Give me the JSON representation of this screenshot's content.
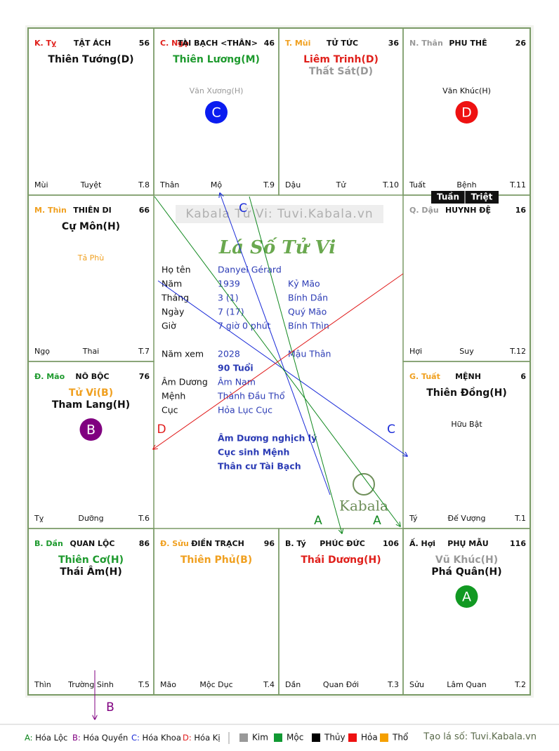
{
  "watermark": "Kabala Tử Vi: Tuvi.Kabala.vn",
  "heading": "Lá Số Tử Vi",
  "logo": "Kabala",
  "palaces": [
    {
      "stem_branch": "K. Tỵ",
      "stem_color": "#e0201b",
      "name": "TẬT ÁCH",
      "number": 56,
      "stars": [
        {
          "text": "Thiên Tướng(D)",
          "color": "#111111"
        }
      ],
      "minor": [],
      "bottom": [
        "Mùi",
        "Tuyệt",
        "T.8"
      ]
    },
    {
      "stem_branch": "C. Ngọ",
      "stem_color": "#e0201b",
      "name": "TÀI BẠCH <THÂN>",
      "number": 46,
      "stars": [
        {
          "text": "Thiên Lương(M)",
          "color": "#1e9a2e"
        }
      ],
      "minor": [
        {
          "text": "Văn Xương(H)",
          "color": "#999999"
        }
      ],
      "circle": {
        "letter": "C",
        "color": "#0a1cf0"
      },
      "bottom": [
        "Thân",
        "Mộ",
        "T.9"
      ]
    },
    {
      "stem_branch": "T. Mùi",
      "stem_color": "#f0a020",
      "name": "TỬ TỨC",
      "number": 36,
      "stars": [
        {
          "text": "Liêm Trinh(D)",
          "color": "#e0201b"
        },
        {
          "text": "Thất Sát(D)",
          "color": "#999999"
        }
      ],
      "minor": [],
      "bottom": [
        "Dậu",
        "Tử",
        "T.10"
      ]
    },
    {
      "stem_branch": "N. Thân",
      "stem_color": "#999999",
      "name": "PHU THÊ",
      "number": 26,
      "stars": [],
      "minor": [
        {
          "text": "Văn Khúc(H)",
          "color": "#111111"
        }
      ],
      "circle": {
        "letter": "D",
        "color": "#ee1111"
      },
      "bottom": [
        "Tuất",
        "Bệnh",
        "T.11"
      ]
    },
    {
      "stem_branch": "M. Thìn",
      "stem_color": "#f0a020",
      "name": "THIÊN DI",
      "number": 66,
      "stars": [
        {
          "text": "Cự Môn(H)",
          "color": "#111111"
        }
      ],
      "minor": [
        {
          "text": "Tả Phù",
          "color": "#f0a020"
        }
      ],
      "bottom": [
        "Ngọ",
        "Thai",
        "T.7"
      ]
    },
    {
      "stem_branch": "Q. Dậu",
      "stem_color": "#999999",
      "name": "HUYNH ĐỆ",
      "number": 16,
      "stars": [],
      "minor": [],
      "bottom": [
        "Hợi",
        "Suy",
        "T.12"
      ]
    },
    {
      "stem_branch": "Đ. Mão",
      "stem_color": "#1e9a2e",
      "name": "NÔ BỘC",
      "number": 76,
      "stars": [
        {
          "text": "Tử Vi(B)",
          "color": "#f0a020"
        },
        {
          "text": "Tham Lang(H)",
          "color": "#111111"
        }
      ],
      "minor": [],
      "circle": {
        "letter": "B",
        "color": "#800080"
      },
      "bottom": [
        "Tỵ",
        "Dưỡng",
        "T.6"
      ]
    },
    {
      "stem_branch": "G. Tuất",
      "stem_color": "#f0a020",
      "name": "MỆNH",
      "number": 6,
      "stars": [
        {
          "text": "Thiên Đồng(H)",
          "color": "#111111"
        }
      ],
      "minor": [
        {
          "text": "Hữu Bật",
          "color": "#111111"
        }
      ],
      "bottom": [
        "Tý",
        "Đế Vượng",
        "T.1"
      ]
    },
    {
      "stem_branch": "B. Dần",
      "stem_color": "#1e9a2e",
      "name": "QUAN LỘC",
      "number": 86,
      "stars": [
        {
          "text": "Thiên Cơ(H)",
          "color": "#1e9a2e"
        },
        {
          "text": "Thái Âm(H)",
          "color": "#111111"
        }
      ],
      "minor": [],
      "bottom": [
        "Thìn",
        "Trường Sinh",
        "T.5"
      ]
    },
    {
      "stem_branch": "Đ. Sửu",
      "stem_color": "#f0a020",
      "name": "ĐIỀN TRẠCH",
      "number": 96,
      "stars": [
        {
          "text": "Thiên Phủ(B)",
          "color": "#f0a020"
        }
      ],
      "minor": [],
      "bottom": [
        "Mão",
        "Mộc Dục",
        "T.4"
      ]
    },
    {
      "stem_branch": "B. Tý",
      "stem_color": "#111111",
      "name": "PHÚC ĐỨC",
      "number": 106,
      "stars": [
        {
          "text": "Thái Dương(H)",
          "color": "#e0201b"
        }
      ],
      "minor": [],
      "bottom": [
        "Dần",
        "Quan Đới",
        "T.3"
      ]
    },
    {
      "stem_branch": "Ấ. Hợi",
      "stem_color": "#111111",
      "name": "PHỤ MẪU",
      "number": 116,
      "stars": [
        {
          "text": "Vũ Khúc(H)",
          "color": "#999999"
        },
        {
          "text": "Phá Quân(H)",
          "color": "#111111"
        }
      ],
      "minor": [],
      "circle": {
        "letter": "A",
        "color": "#119922"
      },
      "bottom": [
        "Sửu",
        "Lâm Quan",
        "T.2"
      ]
    }
  ],
  "tuan_triet": [
    "Tuần",
    "Triệt"
  ],
  "birth": [
    [
      "Họ tên",
      "Danyel Gérard"
    ],
    [
      "Năm",
      "1939",
      "Kỷ Mão"
    ],
    [
      "Tháng",
      "3  (1)",
      "Bính Dần"
    ],
    [
      "Ngày",
      "7  (17)",
      "Quý Mão"
    ],
    [
      "Giờ",
      "7 giờ 0 phút",
      "Bính Thìn"
    ]
  ],
  "year_view": [
    "Năm xem",
    "2028",
    "Mậu Thân"
  ],
  "age": "90 Tuổi",
  "destiny": [
    [
      "Âm Dương",
      "Âm Nam"
    ],
    [
      "Mệnh",
      "Thành Đầu Thổ"
    ],
    [
      "Cục",
      "Hỏa Lục Cục"
    ]
  ],
  "notes": [
    "Âm Dương nghịch lý",
    "Cục sinh Mệnh",
    "Thân cư Tài Bạch"
  ],
  "arrows": [
    {
      "label": "C",
      "color": "#1a2bd8"
    },
    {
      "label": "C",
      "color": "#1a2bd8"
    },
    {
      "label": "A",
      "color": "#11881f"
    },
    {
      "label": "A",
      "color": "#11881f"
    },
    {
      "label": "D",
      "color": "#e01b1b"
    },
    {
      "label": "B",
      "color": "#800080"
    }
  ],
  "legend": {
    "transforms": [
      {
        "text": "A: Hóa Lộc",
        "color": "#11881f"
      },
      {
        "text": "B: Hóa Quyền",
        "color": "#800080"
      },
      {
        "text": "C: Hóa Khoa",
        "color": "#1a2bd8"
      },
      {
        "text": "D: Hóa Kị",
        "color": "#e01b1b"
      }
    ],
    "elements": [
      {
        "text": "Kim",
        "color": "#999999"
      },
      {
        "text": "Mộc",
        "color": "#119933"
      },
      {
        "text": "Thủy",
        "color": "#000000"
      },
      {
        "text": "Hỏa",
        "color": "#ee1111"
      },
      {
        "text": "Thổ",
        "color": "#f5a000"
      }
    ],
    "credit": "Tạo lá số: Tuvi.Kabala.vn"
  }
}
